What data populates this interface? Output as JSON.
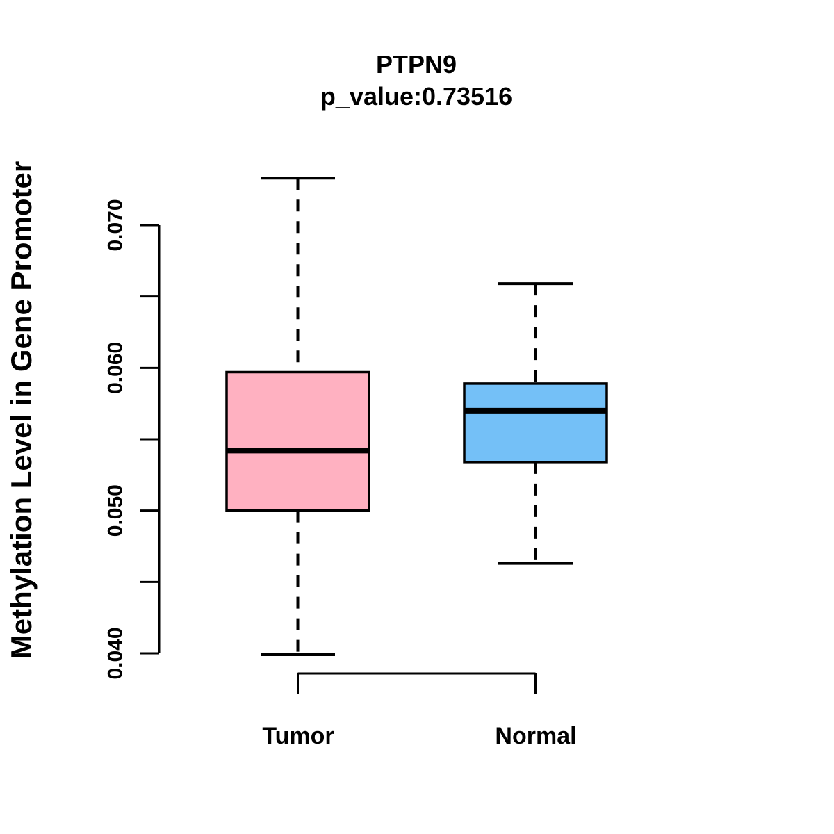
{
  "title": "PTPN9",
  "subtitle": "p_value:0.73516",
  "y_axis_label": "Methylation Level in Gene Promoter",
  "colors": {
    "tumor_fill": "#FFB1C1",
    "normal_fill": "#74C0F7",
    "line": "#000000",
    "background": "#FFFFFF"
  },
  "chart_data": {
    "type": "boxplot",
    "title": "PTPN9",
    "subtitle": "p_value:0.73516",
    "ylabel": "Methylation Level in Gene Promoter",
    "xlabel": "",
    "categories": [
      "Tumor",
      "Normal"
    ],
    "ylim": [
      0.04,
      0.07
    ],
    "y_ticks_major": [
      0.04,
      0.05,
      0.06,
      0.07
    ],
    "y_tick_labels": [
      "0.040",
      "0.050",
      "0.060",
      "0.070"
    ],
    "y_ticks_minor": [
      0.045,
      0.055,
      0.065
    ],
    "grid": false,
    "legend": "none",
    "series": [
      {
        "name": "Tumor",
        "whisker_low": 0.0399,
        "q1": 0.05,
        "median": 0.0542,
        "q3": 0.0597,
        "whisker_high": 0.0733,
        "fill": "#FFB1C1"
      },
      {
        "name": "Normal",
        "whisker_low": 0.0463,
        "q1": 0.0534,
        "median": 0.057,
        "q3": 0.0589,
        "whisker_high": 0.0659,
        "fill": "#74C0F7"
      }
    ]
  }
}
